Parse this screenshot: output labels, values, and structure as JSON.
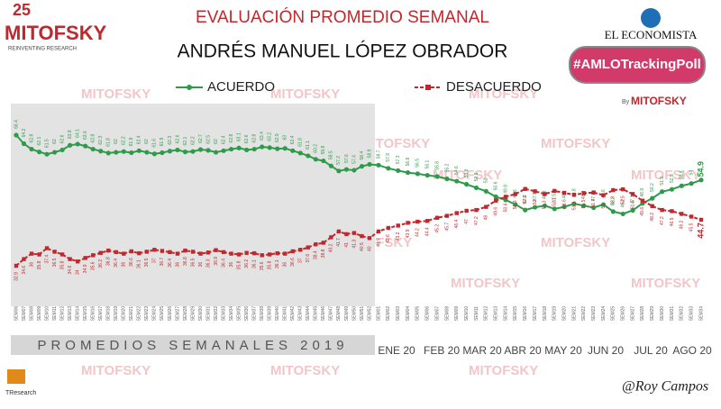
{
  "chart_data": {
    "type": "line",
    "title": "EVALUACIÓN PROMEDIO SEMANAL",
    "subtitle": "ANDRÉS MANUEL LÓPEZ OBRADOR",
    "period_label": "PROMEDIOS SEMANALES 2019",
    "months": [
      "ENE 20",
      "FEB 20",
      "MAR 20",
      "ABR 20",
      "MAY 20",
      "JUN 20",
      "JUL 20",
      "AGO 20"
    ],
    "categories": [
      "SEM06",
      "SEM07",
      "SEM08",
      "SEM09",
      "SEM10",
      "SEM11",
      "SEM12",
      "SEM13",
      "SEM14",
      "SEM15",
      "SEM16",
      "SEM17",
      "SEM18",
      "SEM19",
      "SEM20",
      "SEM21",
      "SEM22",
      "SEM23",
      "SEM24",
      "SEM25",
      "SEM26",
      "SEM27",
      "SEM28",
      "SEM29",
      "SEM30",
      "SEM31",
      "SEM32",
      "SEM33",
      "SEM34",
      "SEM35",
      "SEM36",
      "SEM37",
      "SEM38",
      "SEM39",
      "SEM40",
      "SEM41",
      "SEM42",
      "SEM43",
      "SEM44",
      "SEM45",
      "SEM46",
      "SEM47",
      "SEM48",
      "SEM49",
      "SEM50",
      "SEM51",
      "SEM52",
      "SEM01",
      "SEM02",
      "SEM03",
      "SEM04",
      "SEM05",
      "SEM06",
      "SEM07",
      "SEM08",
      "SEM09",
      "SEM10",
      "SEM11",
      "SEM12",
      "SEM13",
      "SEM14",
      "SEM15",
      "SEM16",
      "SEM17",
      "SEM18",
      "SEM19",
      "SEM20",
      "SEM21",
      "SEM22",
      "SEM23",
      "SEM24",
      "SEM25",
      "SEM26",
      "SEM27",
      "SEM28",
      "SEM29",
      "SEM30",
      "SEM31",
      "SEM32",
      "SEM33",
      "SEM34"
    ],
    "series": [
      {
        "name": "ACUERDO",
        "color": "#2e9b4a",
        "values": [
          66.4,
          64.2,
          62.8,
          62.1,
          61.5,
          62.0,
          62.6,
          63.8,
          64.1,
          63.6,
          62.8,
          62.3,
          61.8,
          62.0,
          62.2,
          61.9,
          62.4,
          62.0,
          61.6,
          61.9,
          62.3,
          62.6,
          62.1,
          62.2,
          62.7,
          62.5,
          62.0,
          62.4,
          62.8,
          63.1,
          62.6,
          62.8,
          63.4,
          63.2,
          62.9,
          63.0,
          62.4,
          61.8,
          61.1,
          60.2,
          59.8,
          58.5,
          57.2,
          57.6,
          57.4,
          58.4,
          58.9,
          58.7,
          57.9,
          57.3,
          56.8,
          56.5,
          56.1,
          55.8,
          55.2,
          54.6,
          53.8,
          52.9,
          52.0,
          50.6,
          49.8,
          48.6,
          47.2,
          47.9,
          48.3,
          47.5,
          48.0,
          48.8,
          48.3,
          47.8,
          48.6,
          46.8,
          46.2,
          47.1,
          48.9,
          50.2,
          51.9,
          52.5,
          53.4,
          54.0,
          54.9
        ]
      },
      {
        "name": "DESACUERDO",
        "color": "#c0282d",
        "values": [
          32.9,
          34.6,
          36.0,
          35.8,
          37.4,
          36.5,
          35.8,
          34.6,
          34.0,
          34.9,
          35.6,
          36.2,
          36.8,
          36.4,
          36.0,
          36.6,
          36.1,
          36.5,
          37.0,
          36.7,
          36.4,
          36.0,
          36.8,
          36.5,
          36.0,
          36.3,
          36.9,
          36.4,
          36.0,
          35.8,
          36.2,
          36.1,
          35.6,
          35.8,
          36.1,
          36.0,
          36.6,
          37.0,
          37.6,
          38.4,
          38.8,
          40.2,
          41.7,
          41.0,
          41.3,
          40.5,
          40.0,
          41.7,
          42.6,
          43.2,
          43.9,
          44.2,
          44.4,
          45.2,
          45.7,
          46.4,
          47.0,
          47.2,
          48.0,
          49.6,
          50.6,
          51.3,
          52.6,
          52.0,
          51.3,
          52.1,
          51.6,
          51.1,
          51.5,
          51.7,
          51.0,
          52.3,
          52.5,
          51.3,
          49.6,
          48.2,
          47.2,
          46.9,
          46.2,
          45.5,
          44.7
        ]
      }
    ]
  },
  "branding": {
    "logo_badge": "25",
    "logo": "MITOFSKY",
    "logo_tagline": "REINVENTING RESEARCH",
    "newspaper": "EL ECONOMISTA",
    "hashtag": "#AMLOTrackingPoll",
    "by": "By",
    "by_brand": "MITOFSKY",
    "signature": "@Roy Campos",
    "footer_brand": "TResearch",
    "watermark": "MITOFSKY"
  }
}
